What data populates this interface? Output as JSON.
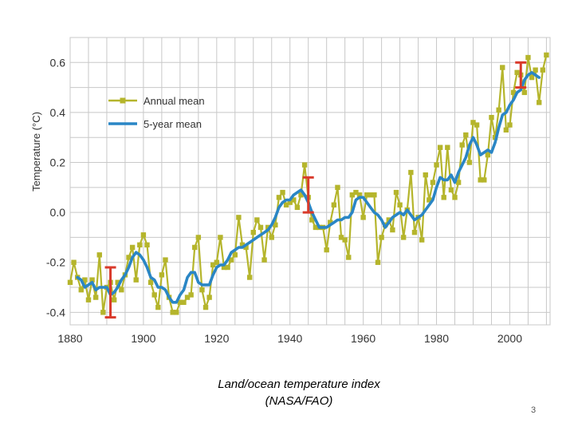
{
  "slide": {
    "caption_line1": "Land/ocean temperature index",
    "caption_line2": "(NASA/FAO)",
    "page_number": "3"
  },
  "chart_data": {
    "type": "line",
    "title": "",
    "xlabel": "",
    "ylabel": "Temperature (°C)",
    "xlim": [
      1880,
      2011
    ],
    "ylim": [
      -0.45,
      0.7
    ],
    "grid": true,
    "legend_placement": "top-left",
    "x_ticks": [
      1880,
      1900,
      1920,
      1940,
      1960,
      1980,
      2000
    ],
    "y_ticks": [
      -0.4,
      -0.2,
      0.0,
      0.2,
      0.4,
      0.6
    ],
    "y_tick_labels": [
      "-0.4",
      "-0.2",
      "0.0",
      "0.2",
      "0.4",
      "0.6"
    ],
    "colors": {
      "annual": "#b5b52c",
      "five_year": "#2a86c5",
      "error_bar": "#d93a2b",
      "grid": "#c8c8c8",
      "plot_bg": "#ffffff"
    },
    "series": [
      {
        "name": "Annual mean",
        "x": [
          1880,
          1881,
          1882,
          1883,
          1884,
          1885,
          1886,
          1887,
          1888,
          1889,
          1890,
          1891,
          1892,
          1893,
          1894,
          1895,
          1896,
          1897,
          1898,
          1899,
          1900,
          1901,
          1902,
          1903,
          1904,
          1905,
          1906,
          1907,
          1908,
          1909,
          1910,
          1911,
          1912,
          1913,
          1914,
          1915,
          1916,
          1917,
          1918,
          1919,
          1920,
          1921,
          1922,
          1923,
          1924,
          1925,
          1926,
          1927,
          1928,
          1929,
          1930,
          1931,
          1932,
          1933,
          1934,
          1935,
          1936,
          1937,
          1938,
          1939,
          1940,
          1941,
          1942,
          1943,
          1944,
          1945,
          1946,
          1947,
          1948,
          1949,
          1950,
          1951,
          1952,
          1953,
          1954,
          1955,
          1956,
          1957,
          1958,
          1959,
          1960,
          1961,
          1962,
          1963,
          1964,
          1965,
          1966,
          1967,
          1968,
          1969,
          1970,
          1971,
          1972,
          1973,
          1974,
          1975,
          1976,
          1977,
          1978,
          1979,
          1980,
          1981,
          1982,
          1983,
          1984,
          1985,
          1986,
          1987,
          1988,
          1989,
          1990,
          1991,
          1992,
          1993,
          1994,
          1995,
          1996,
          1997,
          1998,
          1999,
          2000,
          2001,
          2002,
          2003,
          2004,
          2005,
          2006,
          2007,
          2008,
          2009,
          2010
        ],
        "values": [
          -0.28,
          -0.2,
          -0.26,
          -0.31,
          -0.27,
          -0.35,
          -0.27,
          -0.34,
          -0.17,
          -0.4,
          -0.3,
          -0.28,
          -0.35,
          -0.28,
          -0.31,
          -0.25,
          -0.18,
          -0.14,
          -0.27,
          -0.13,
          -0.09,
          -0.13,
          -0.28,
          -0.33,
          -0.38,
          -0.25,
          -0.19,
          -0.34,
          -0.4,
          -0.4,
          -0.36,
          -0.36,
          -0.34,
          -0.33,
          -0.14,
          -0.1,
          -0.31,
          -0.38,
          -0.34,
          -0.21,
          -0.2,
          -0.1,
          -0.22,
          -0.22,
          -0.19,
          -0.17,
          -0.02,
          -0.13,
          -0.14,
          -0.26,
          -0.08,
          -0.03,
          -0.06,
          -0.19,
          -0.06,
          -0.1,
          -0.05,
          0.06,
          0.08,
          0.03,
          0.04,
          0.05,
          0.02,
          0.07,
          0.19,
          0.06,
          -0.03,
          -0.06,
          -0.06,
          -0.06,
          -0.15,
          -0.04,
          0.03,
          0.1,
          -0.1,
          -0.11,
          -0.18,
          0.07,
          0.08,
          0.07,
          -0.02,
          0.07,
          0.07,
          0.07,
          -0.2,
          -0.1,
          -0.05,
          -0.03,
          -0.07,
          0.08,
          0.03,
          -0.1,
          0.01,
          0.16,
          -0.08,
          -0.02,
          -0.11,
          0.15,
          0.05,
          0.12,
          0.19,
          0.26,
          0.06,
          0.26,
          0.09,
          0.06,
          0.12,
          0.27,
          0.31,
          0.2,
          0.36,
          0.35,
          0.13,
          0.13,
          0.23,
          0.38,
          0.3,
          0.41,
          0.58,
          0.33,
          0.35,
          0.48,
          0.56,
          0.55,
          0.48,
          0.62,
          0.54,
          0.57,
          0.44,
          0.57,
          0.63
        ]
      },
      {
        "name": "5-year mean",
        "x": [
          1882,
          1883,
          1884,
          1885,
          1886,
          1887,
          1888,
          1889,
          1890,
          1891,
          1892,
          1893,
          1894,
          1895,
          1896,
          1897,
          1898,
          1899,
          1900,
          1901,
          1902,
          1903,
          1904,
          1905,
          1906,
          1907,
          1908,
          1909,
          1910,
          1911,
          1912,
          1913,
          1914,
          1915,
          1916,
          1917,
          1918,
          1919,
          1920,
          1921,
          1922,
          1923,
          1924,
          1925,
          1926,
          1927,
          1928,
          1929,
          1930,
          1931,
          1932,
          1933,
          1934,
          1935,
          1936,
          1937,
          1938,
          1939,
          1940,
          1941,
          1942,
          1943,
          1944,
          1945,
          1946,
          1947,
          1948,
          1949,
          1950,
          1951,
          1952,
          1953,
          1954,
          1955,
          1956,
          1957,
          1958,
          1959,
          1960,
          1961,
          1962,
          1963,
          1964,
          1965,
          1966,
          1967,
          1968,
          1969,
          1970,
          1971,
          1972,
          1973,
          1974,
          1975,
          1976,
          1977,
          1978,
          1979,
          1980,
          1981,
          1982,
          1983,
          1984,
          1985,
          1986,
          1987,
          1988,
          1989,
          1990,
          1991,
          1992,
          1993,
          1994,
          1995,
          1996,
          1997,
          1998,
          1999,
          2000,
          2001,
          2002,
          2003,
          2004,
          2005,
          2006,
          2007,
          2008
        ],
        "values": [
          -0.26,
          -0.27,
          -0.3,
          -0.29,
          -0.28,
          -0.31,
          -0.3,
          -0.3,
          -0.3,
          -0.33,
          -0.32,
          -0.3,
          -0.27,
          -0.25,
          -0.22,
          -0.18,
          -0.16,
          -0.17,
          -0.19,
          -0.22,
          -0.26,
          -0.27,
          -0.3,
          -0.3,
          -0.31,
          -0.34,
          -0.36,
          -0.36,
          -0.33,
          -0.31,
          -0.26,
          -0.24,
          -0.24,
          -0.28,
          -0.29,
          -0.29,
          -0.29,
          -0.25,
          -0.22,
          -0.21,
          -0.21,
          -0.19,
          -0.16,
          -0.15,
          -0.14,
          -0.14,
          -0.13,
          -0.12,
          -0.11,
          -0.1,
          -0.09,
          -0.08,
          -0.07,
          -0.05,
          -0.02,
          0.02,
          0.04,
          0.05,
          0.05,
          0.07,
          0.08,
          0.09,
          0.07,
          0.04,
          0.0,
          -0.03,
          -0.06,
          -0.06,
          -0.06,
          -0.05,
          -0.04,
          -0.03,
          -0.03,
          -0.02,
          -0.02,
          0.0,
          0.05,
          0.06,
          0.06,
          0.04,
          0.02,
          0.0,
          -0.01,
          -0.03,
          -0.06,
          -0.04,
          -0.02,
          -0.01,
          0.0,
          -0.01,
          0.01,
          -0.01,
          -0.03,
          -0.02,
          -0.01,
          0.01,
          0.03,
          0.05,
          0.1,
          0.14,
          0.13,
          0.13,
          0.15,
          0.12,
          0.16,
          0.19,
          0.22,
          0.27,
          0.3,
          0.27,
          0.23,
          0.24,
          0.25,
          0.24,
          0.28,
          0.34,
          0.39,
          0.4,
          0.43,
          0.45,
          0.48,
          0.49,
          0.53,
          0.55,
          0.56,
          0.55,
          0.54
        ]
      }
    ],
    "error_bars": [
      {
        "x": 1891,
        "low": -0.42,
        "high": -0.22
      },
      {
        "x": 1945,
        "low": 0.0,
        "high": 0.14
      },
      {
        "x": 2003,
        "low": 0.5,
        "high": 0.6
      }
    ]
  }
}
